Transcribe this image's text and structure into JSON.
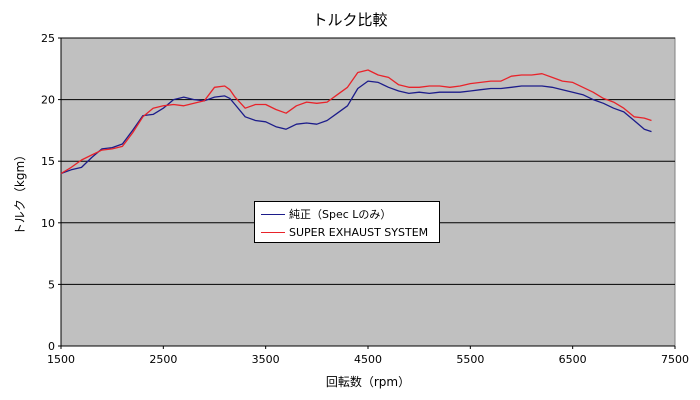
{
  "colors": {
    "plot_bg": "#c0c0c0",
    "grid": "#000000",
    "stock": "#1c1c8a",
    "exhaust": "#e8232a"
  },
  "chart_data": {
    "type": "line",
    "title": "トルク比較",
    "xlabel": "回転数（rpm）",
    "ylabel": "トルク（kgm）",
    "xlim": [
      1500,
      7500
    ],
    "ylim": [
      0,
      25
    ],
    "xticks": [
      1500,
      2500,
      3500,
      4500,
      5500,
      6500,
      7500
    ],
    "yticks": [
      0,
      5,
      10,
      15,
      20,
      25
    ],
    "grid": "horizontal",
    "legend_position": "center",
    "series": [
      {
        "name": "純正（Spec Lのみ）",
        "color": "#1c1c8a",
        "points": [
          [
            1500,
            14.0
          ],
          [
            1600,
            14.3
          ],
          [
            1700,
            14.5
          ],
          [
            1800,
            15.3
          ],
          [
            1900,
            16.0
          ],
          [
            2000,
            16.1
          ],
          [
            2100,
            16.4
          ],
          [
            2200,
            17.5
          ],
          [
            2300,
            18.7
          ],
          [
            2400,
            18.8
          ],
          [
            2500,
            19.3
          ],
          [
            2600,
            20.0
          ],
          [
            2700,
            20.2
          ],
          [
            2800,
            20.0
          ],
          [
            2900,
            19.9
          ],
          [
            3000,
            20.2
          ],
          [
            3100,
            20.3
          ],
          [
            3150,
            20.1
          ],
          [
            3200,
            19.6
          ],
          [
            3300,
            18.6
          ],
          [
            3400,
            18.3
          ],
          [
            3500,
            18.2
          ],
          [
            3600,
            17.8
          ],
          [
            3700,
            17.6
          ],
          [
            3800,
            18.0
          ],
          [
            3900,
            18.1
          ],
          [
            4000,
            18.0
          ],
          [
            4100,
            18.3
          ],
          [
            4200,
            18.9
          ],
          [
            4300,
            19.5
          ],
          [
            4400,
            20.9
          ],
          [
            4500,
            21.5
          ],
          [
            4600,
            21.4
          ],
          [
            4700,
            21.0
          ],
          [
            4800,
            20.7
          ],
          [
            4900,
            20.5
          ],
          [
            5000,
            20.6
          ],
          [
            5100,
            20.5
          ],
          [
            5200,
            20.6
          ],
          [
            5300,
            20.6
          ],
          [
            5400,
            20.6
          ],
          [
            5500,
            20.7
          ],
          [
            5600,
            20.8
          ],
          [
            5700,
            20.9
          ],
          [
            5800,
            20.9
          ],
          [
            5900,
            21.0
          ],
          [
            6000,
            21.1
          ],
          [
            6100,
            21.1
          ],
          [
            6200,
            21.1
          ],
          [
            6300,
            21.0
          ],
          [
            6400,
            20.8
          ],
          [
            6500,
            20.6
          ],
          [
            6600,
            20.4
          ],
          [
            6700,
            20.0
          ],
          [
            6800,
            19.7
          ],
          [
            6900,
            19.3
          ],
          [
            7000,
            19.0
          ],
          [
            7100,
            18.3
          ],
          [
            7200,
            17.6
          ],
          [
            7270,
            17.4
          ]
        ]
      },
      {
        "name": "SUPER EXHAUST SYSTEM",
        "color": "#e8232a",
        "points": [
          [
            1500,
            14.0
          ],
          [
            1600,
            14.5
          ],
          [
            1700,
            15.1
          ],
          [
            1800,
            15.5
          ],
          [
            1900,
            15.9
          ],
          [
            2000,
            16.0
          ],
          [
            2100,
            16.2
          ],
          [
            2200,
            17.3
          ],
          [
            2300,
            18.6
          ],
          [
            2400,
            19.3
          ],
          [
            2500,
            19.5
          ],
          [
            2600,
            19.6
          ],
          [
            2700,
            19.5
          ],
          [
            2800,
            19.7
          ],
          [
            2900,
            19.9
          ],
          [
            3000,
            21.0
          ],
          [
            3100,
            21.1
          ],
          [
            3150,
            20.8
          ],
          [
            3200,
            20.2
          ],
          [
            3300,
            19.3
          ],
          [
            3400,
            19.6
          ],
          [
            3500,
            19.6
          ],
          [
            3600,
            19.2
          ],
          [
            3700,
            18.9
          ],
          [
            3800,
            19.5
          ],
          [
            3900,
            19.8
          ],
          [
            4000,
            19.7
          ],
          [
            4100,
            19.8
          ],
          [
            4200,
            20.4
          ],
          [
            4300,
            21.0
          ],
          [
            4400,
            22.2
          ],
          [
            4500,
            22.4
          ],
          [
            4600,
            22.0
          ],
          [
            4700,
            21.8
          ],
          [
            4800,
            21.2
          ],
          [
            4900,
            21.0
          ],
          [
            5000,
            21.0
          ],
          [
            5100,
            21.1
          ],
          [
            5200,
            21.1
          ],
          [
            5300,
            21.0
          ],
          [
            5400,
            21.1
          ],
          [
            5500,
            21.3
          ],
          [
            5600,
            21.4
          ],
          [
            5700,
            21.5
          ],
          [
            5800,
            21.5
          ],
          [
            5900,
            21.9
          ],
          [
            6000,
            22.0
          ],
          [
            6100,
            22.0
          ],
          [
            6200,
            22.1
          ],
          [
            6300,
            21.8
          ],
          [
            6400,
            21.5
          ],
          [
            6500,
            21.4
          ],
          [
            6600,
            21.0
          ],
          [
            6700,
            20.6
          ],
          [
            6800,
            20.1
          ],
          [
            6900,
            19.8
          ],
          [
            7000,
            19.3
          ],
          [
            7100,
            18.6
          ],
          [
            7200,
            18.5
          ],
          [
            7270,
            18.3
          ]
        ]
      }
    ]
  }
}
